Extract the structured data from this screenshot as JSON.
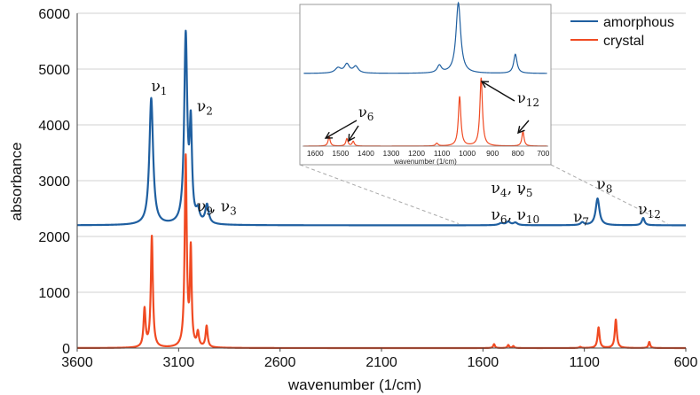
{
  "chart_data": {
    "type": "line",
    "xlabel": "wavenumber (1/cm)",
    "ylabel": "absorbance",
    "xlim": [
      3600,
      600
    ],
    "ylim": [
      0,
      6000
    ],
    "x_reversed": true,
    "x_ticks": [
      3600,
      3100,
      2600,
      2100,
      1600,
      1100,
      600
    ],
    "y_ticks": [
      0,
      1000,
      2000,
      3000,
      4000,
      5000,
      6000
    ],
    "legend": {
      "position": "top-right",
      "entries": [
        "amorphous",
        "crystal"
      ]
    },
    "series": [
      {
        "name": "amorphous",
        "color": "#1f5fa0",
        "baseline": 2200,
        "peaks": [
          {
            "x": 3235,
            "height": 2270,
            "width": 11
          },
          {
            "x": 3065,
            "height": 3350,
            "width": 9
          },
          {
            "x": 3040,
            "height": 1650,
            "width": 7
          },
          {
            "x": 3005,
            "height": 200,
            "width": 10
          },
          {
            "x": 2960,
            "height": 340,
            "width": 10
          },
          {
            "x": 1510,
            "height": 35,
            "width": 14
          },
          {
            "x": 1475,
            "height": 60,
            "width": 12
          },
          {
            "x": 1440,
            "height": 45,
            "width": 12
          },
          {
            "x": 1110,
            "height": 50,
            "width": 10
          },
          {
            "x": 1035,
            "height": 480,
            "width": 11
          },
          {
            "x": 810,
            "height": 130,
            "width": 8
          }
        ]
      },
      {
        "name": "crystal",
        "color": "#f04a22",
        "baseline": 0,
        "peaks": [
          {
            "x": 3268,
            "height": 680,
            "width": 6
          },
          {
            "x": 3232,
            "height": 1990,
            "width": 6
          },
          {
            "x": 3065,
            "height": 3400,
            "width": 6
          },
          {
            "x": 3040,
            "height": 1700,
            "width": 5
          },
          {
            "x": 3005,
            "height": 250,
            "width": 6
          },
          {
            "x": 2962,
            "height": 380,
            "width": 6
          },
          {
            "x": 1545,
            "height": 70,
            "width": 5
          },
          {
            "x": 1475,
            "height": 55,
            "width": 5
          },
          {
            "x": 1450,
            "height": 35,
            "width": 5
          },
          {
            "x": 1120,
            "height": 20,
            "width": 6
          },
          {
            "x": 1030,
            "height": 370,
            "width": 6
          },
          {
            "x": 945,
            "height": 510,
            "width": 6
          },
          {
            "x": 780,
            "height": 110,
            "width": 5
          }
        ]
      }
    ],
    "annotations": [
      {
        "text": "ν",
        "sub": "1",
        "x": 3235,
        "y": 4600
      },
      {
        "text": "ν",
        "sub": "2",
        "x": 3010,
        "y": 4250
      },
      {
        "text": "ν",
        "sub": "9",
        "x": 3010,
        "y": 2450
      },
      {
        "text": ", ν",
        "sub": "3",
        "x": 2940,
        "y": 2450
      },
      {
        "text": "ν",
        "sub": "4",
        "x": 1560,
        "y": 2780
      },
      {
        "text": ", ν",
        "sub": "5",
        "x": 1480,
        "y": 2780
      },
      {
        "text": ",",
        "sub": "",
        "x": 1420,
        "y": 2780
      },
      {
        "text": "ν",
        "sub": "6",
        "x": 1560,
        "y": 2300
      },
      {
        "text": ", ν",
        "sub": "10",
        "x": 1480,
        "y": 2300
      },
      {
        "text": "ν",
        "sub": "7",
        "x": 1155,
        "y": 2260
      },
      {
        "text": "ν",
        "sub": "8",
        "x": 1040,
        "y": 2850
      },
      {
        "text": "ν",
        "sub": "12",
        "x": 835,
        "y": 2400
      }
    ],
    "inset": {
      "xlim": [
        1650,
        680
      ],
      "x_ticks": [
        1600,
        1500,
        1400,
        1300,
        1200,
        1100,
        1000,
        900,
        800,
        700
      ],
      "xlabel": "wavenumber (1/cm)",
      "annotations": [
        {
          "text": "ν",
          "sub": "6"
        },
        {
          "text": "ν",
          "sub": "12"
        }
      ]
    }
  }
}
